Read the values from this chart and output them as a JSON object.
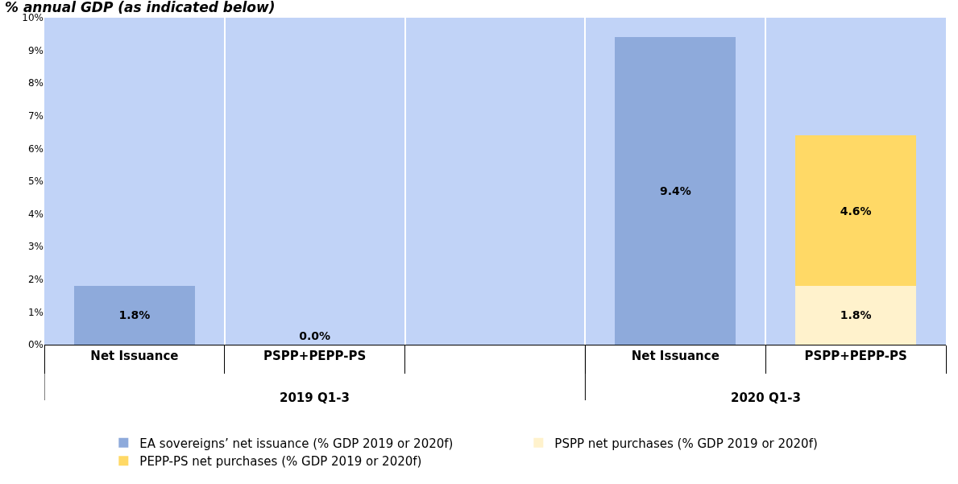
{
  "chart_data": {
    "type": "bar",
    "title": "% annual GDP (as indicated below)",
    "categories": [
      "Net Issuance",
      "PSPP+PEPP-PS",
      null,
      "Net Issuance",
      "PSPP+PEPP-PS"
    ],
    "stacked": true,
    "series": [
      {
        "name": "EA sovereigns’ net issuance (% GDP 2019 or 2020f)",
        "color": "#8eaadb",
        "values": [
          1.8,
          null,
          null,
          9.4,
          null
        ],
        "value_labels": [
          "1.8%",
          null,
          null,
          "9.4%",
          null
        ]
      },
      {
        "name": "PSPP net purchases (% GDP 2019 or 2020f)",
        "color": "#fff2cc",
        "values": [
          null,
          0.0,
          null,
          null,
          1.8
        ],
        "value_labels": [
          null,
          "0.0%",
          null,
          null,
          "1.8%"
        ]
      },
      {
        "name": "PEPP-PS net purchases (% GDP 2019 or 2020f)",
        "color": "#ffd966",
        "values": [
          null,
          null,
          null,
          null,
          4.6
        ],
        "value_labels": [
          null,
          null,
          null,
          null,
          "4.6%"
        ]
      }
    ],
    "annotations": [
      "2019 Q1-3",
      "2020 Q1-3"
    ],
    "ylim": [
      0,
      10
    ],
    "yticks": [
      {
        "value": 0,
        "label": "0%"
      },
      {
        "value": 1,
        "label": "1%"
      },
      {
        "value": 2,
        "label": "2%"
      },
      {
        "value": 3,
        "label": "3%"
      },
      {
        "value": 4,
        "label": "4%"
      },
      {
        "value": 5,
        "label": "5%"
      },
      {
        "value": 6,
        "label": "6%"
      },
      {
        "value": 7,
        "label": "7%"
      },
      {
        "value": 8,
        "label": "8%"
      },
      {
        "value": 9,
        "label": "9%"
      },
      {
        "value": 10,
        "label": "10%"
      }
    ],
    "grid": "x",
    "legend": "bottom"
  }
}
